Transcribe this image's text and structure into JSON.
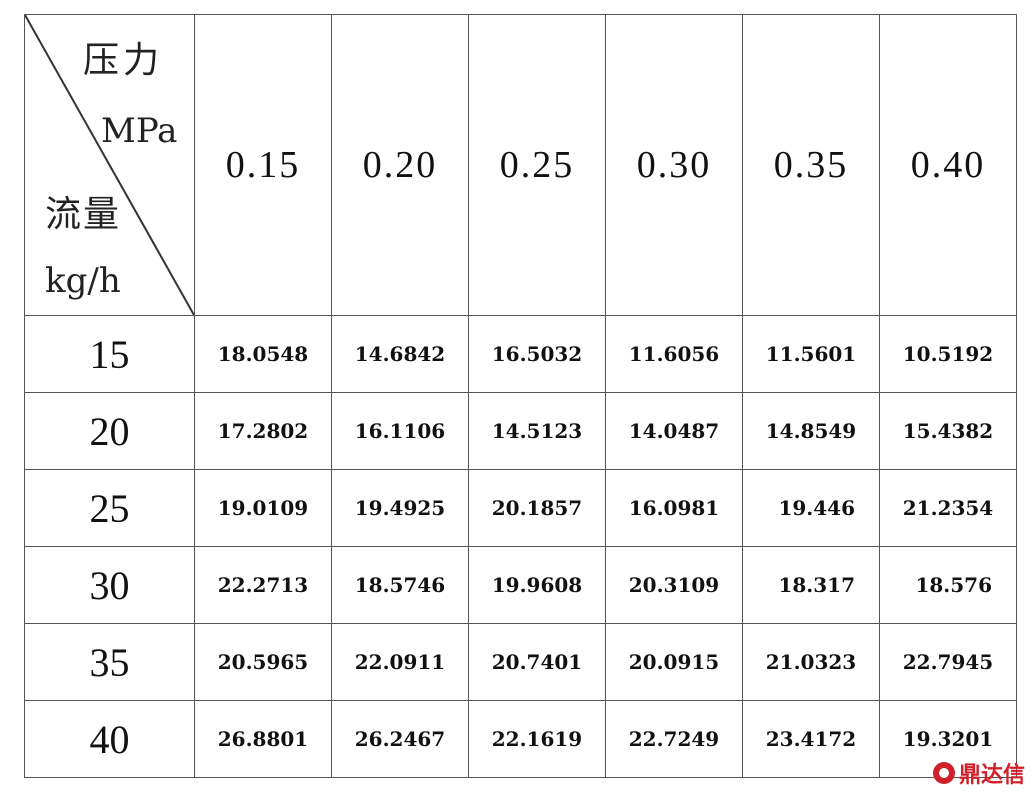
{
  "corner": {
    "pressure_label": "压力",
    "pressure_unit": "MPa",
    "flow_label": "流量",
    "flow_unit": "kg/h"
  },
  "columns": [
    "0.15",
    "0.20",
    "0.25",
    "0.30",
    "0.35",
    "0.40"
  ],
  "rows": [
    {
      "label": "15",
      "values": [
        "18.0548",
        "14.6842",
        "16.5032",
        "11.6056",
        "11.5601",
        "10.5192"
      ]
    },
    {
      "label": "20",
      "values": [
        "17.2802",
        "16.1106",
        "14.5123",
        "14.0487",
        "14.8549",
        "15.4382"
      ]
    },
    {
      "label": "25",
      "values": [
        "19.0109",
        "19.4925",
        "20.1857",
        "16.0981",
        "19.446",
        "21.2354"
      ]
    },
    {
      "label": "30",
      "values": [
        "22.2713",
        "18.5746",
        "19.9608",
        "20.3109",
        "18.317",
        "18.576"
      ]
    },
    {
      "label": "35",
      "values": [
        "20.5965",
        "22.0911",
        "20.7401",
        "20.0915",
        "21.0323",
        "22.7945"
      ]
    },
    {
      "label": "40",
      "values": [
        "26.8801",
        "26.2467",
        "22.1619",
        "22.7249",
        "23.4172",
        "19.3201"
      ]
    }
  ],
  "watermark": {
    "text": "鼎达信",
    "color": "#d0202a"
  }
}
